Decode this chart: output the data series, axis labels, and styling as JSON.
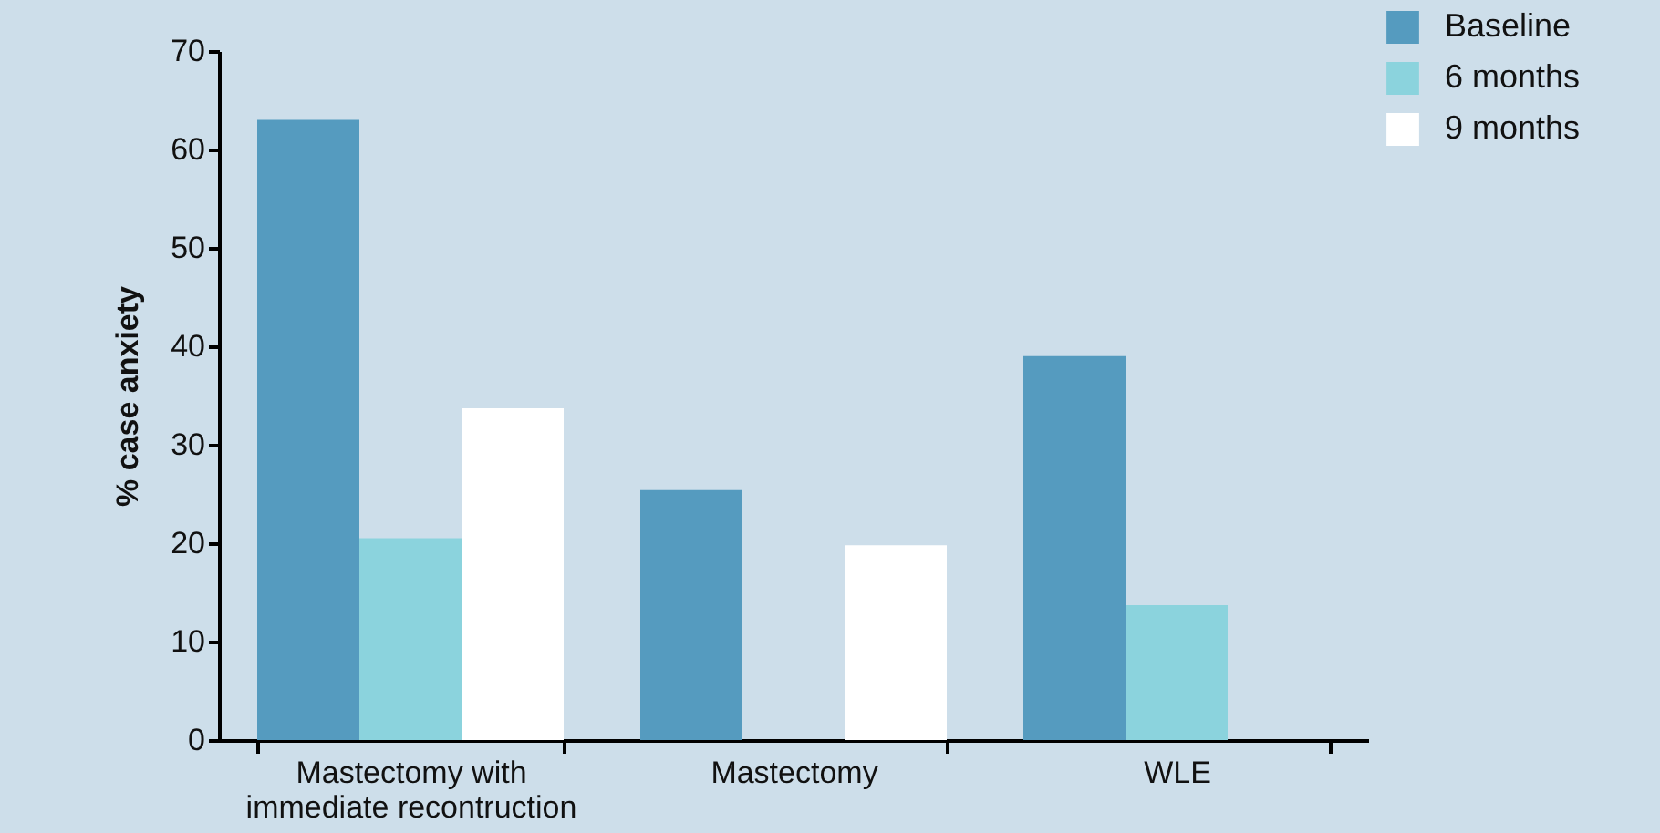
{
  "chart_data": {
    "type": "bar",
    "ylabel": "% case anxiety",
    "categories": [
      "Mastectomy with immediate recontruction",
      "Mastectomy",
      "WLE"
    ],
    "series": [
      {
        "name": "Baseline",
        "color": "#559bbf",
        "values": [
          63,
          25.4,
          39
        ]
      },
      {
        "name": "6 months",
        "color": "#8bd3dd",
        "values": [
          20.5,
          null,
          13.7
        ]
      },
      {
        "name": "9 months",
        "color": "#ffffff",
        "values": [
          33.7,
          19.8,
          null
        ]
      }
    ],
    "ylim": [
      0,
      70
    ],
    "yticks": [
      0,
      10,
      20,
      30,
      40,
      50,
      60,
      70
    ],
    "grid": false,
    "legend": "top right"
  }
}
